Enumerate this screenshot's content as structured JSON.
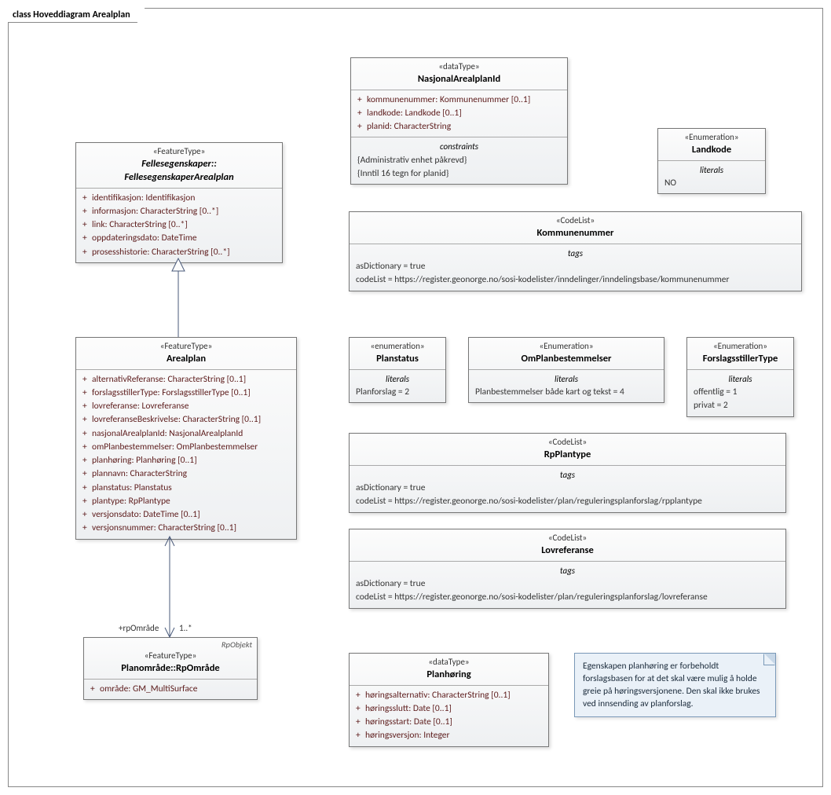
{
  "frame_title": "class Hoveddiagram Arealplan",
  "boxes": {
    "felles": {
      "stereotype": "«FeatureType»",
      "title_line1": "Fellesegenskaper::",
      "title_line2": "FellesegenskaperArealplan",
      "attrs": [
        "identifikasjon: Identifikasjon",
        "informasjon: CharacterString [0..*]",
        "link: CharacterString [0..*]",
        "oppdateringsdato: DateTime",
        "prosesshistorie: CharacterString [0..*]"
      ]
    },
    "nasjonal": {
      "stereotype": "«dataType»",
      "title": "NasjonalArealplanId",
      "attrs": [
        "kommunenummer: Kommunenummer [0..1]",
        "landkode: Landkode [0..1]",
        "planid: CharacterString"
      ],
      "constraints_title": "constraints",
      "constraints": [
        "{Administrativ enhet påkrevd}",
        "{Inntil 16 tegn for planid}"
      ]
    },
    "landkode": {
      "stereotype": "«Enumeration»",
      "title": "Landkode",
      "literals_title": "literals",
      "literals": [
        "NO"
      ]
    },
    "kommunenummer": {
      "stereotype": "«CodeList»",
      "title": "Kommunenummer",
      "tags_title": "tags",
      "tags": [
        "asDictionary = true",
        "codeList = https://register.geonorge.no/sosi-kodelister/inndelinger/inndelingsbase/kommunenummer"
      ]
    },
    "arealplan": {
      "stereotype": "«FeatureType»",
      "title": "Arealplan",
      "attrs": [
        "alternativReferanse: CharacterString [0..1]",
        "forslagsstillerType: ForslagsstillerType [0..1]",
        "lovreferanse: Lovreferanse",
        "lovreferanseBeskrivelse: CharacterString [0..1]",
        "nasjonalArealplanId: NasjonalArealplanId",
        "omPlanbestemmelser: OmPlanbestemmelser",
        "planhøring: Planhøring [0..1]",
        "plannavn: CharacterString",
        "planstatus: Planstatus",
        "plantype: RpPlantype",
        "versjonsdato: DateTime [0..1]",
        "versjonsnummer: CharacterString [0..1]"
      ]
    },
    "planstatus": {
      "stereotype": "«enumeration»",
      "title": "Planstatus",
      "literals_title": "literals",
      "literals": [
        "Planforslag = 2"
      ]
    },
    "omplanbest": {
      "stereotype": "«Enumeration»",
      "title": "OmPlanbestemmelser",
      "literals_title": "literals",
      "literals": [
        "Planbestemmelser både kart og tekst = 4"
      ]
    },
    "forslagstype": {
      "stereotype": "«Enumeration»",
      "title": "ForslagsstillerType",
      "literals_title": "literals",
      "literals": [
        "offentlig = 1",
        "privat = 2"
      ]
    },
    "rpplantype": {
      "stereotype": "«CodeList»",
      "title": "RpPlantype",
      "tags_title": "tags",
      "tags": [
        "asDictionary = true",
        "codeList = https://register.geonorge.no/sosi-kodelister/plan/reguleringsplanforslag/rpplantype"
      ]
    },
    "lovreferanse": {
      "stereotype": "«CodeList»",
      "title": "Lovreferanse",
      "tags_title": "tags",
      "tags": [
        "asDictionary = true",
        "codeList = https://register.geonorge.no/sosi-kodelister/plan/reguleringsplanforslag/lovreferanse"
      ]
    },
    "rpomrade": {
      "ext_label": "RpObjekt",
      "stereotype": "«FeatureType»",
      "title": "Planområde::RpOmråde",
      "attrs": [
        "område: GM_MultiSurface"
      ]
    },
    "planhoring": {
      "stereotype": "«dataType»",
      "title": "Planhøring",
      "attrs": [
        "høringsalternativ: CharacterString [0..1]",
        "høringsslutt: Date [0..1]",
        "høringsstart: Date [0..1]",
        "høringsversjon: Integer"
      ]
    }
  },
  "note_text": "Egenskapen planhøring er forbeholdt forslagsbasen for at det skal være mulig å holde greie på høringsversjonene. Den skal ikke brukes ved innsending av planforslag.",
  "assoc": {
    "role": "+rpOmråde",
    "mult": "1..*"
  },
  "colors": {
    "box_border": "#777777",
    "note_border": "#7a99b8",
    "note_bg": "#eaf1f8",
    "connector": "#4a5a7a"
  }
}
